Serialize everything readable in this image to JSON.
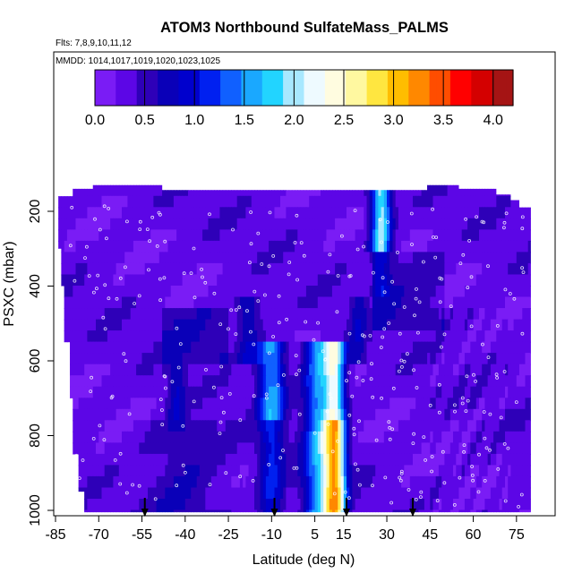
{
  "chart_data": {
    "type": "heatmap",
    "title": "ATOM3 Northbound SulfateMass_PALMS",
    "subtitle_flights": "Flts: 7,8,9,10,11,12",
    "subtitle_dates": "MMDD: 1014,1017,1019,1020,1023,1025",
    "xlabel": "Latitude (deg N)",
    "ylabel": "PSXC (mbar)",
    "xlim": [
      -85,
      85
    ],
    "ylim": [
      1000,
      0
    ],
    "x_ticks": [
      -85,
      -70,
      -55,
      -40,
      -25,
      -10,
      5,
      15,
      30,
      45,
      60,
      75
    ],
    "y_ticks": [
      200,
      400,
      600,
      800,
      1000
    ],
    "colorbar": {
      "ticks": [
        0.0,
        0.5,
        1.0,
        1.5,
        2.0,
        2.5,
        3.0,
        3.5,
        4.0
      ],
      "tick_labels": [
        "0.0",
        "0.5",
        "1.0",
        "1.5",
        "2.0",
        "2.5",
        "3.0",
        "3.5",
        "4.0"
      ],
      "range": [
        0,
        4.2
      ],
      "colors": [
        "#7a1cf5",
        "#5c06e6",
        "#2e00b8",
        "#0a00b8",
        "#0000cd",
        "#0020f0",
        "#1060ff",
        "#1aa8ff",
        "#22d4ff",
        "#a8e8ff",
        "#eefaff",
        "#fffce0",
        "#fff8a0",
        "#ffe640",
        "#ffbd00",
        "#ff8800",
        "#ff4d00",
        "#ff0000",
        "#d40000",
        "#a51414"
      ]
    },
    "profile_markers_lat": [
      -54,
      -9,
      16,
      39
    ]
  }
}
